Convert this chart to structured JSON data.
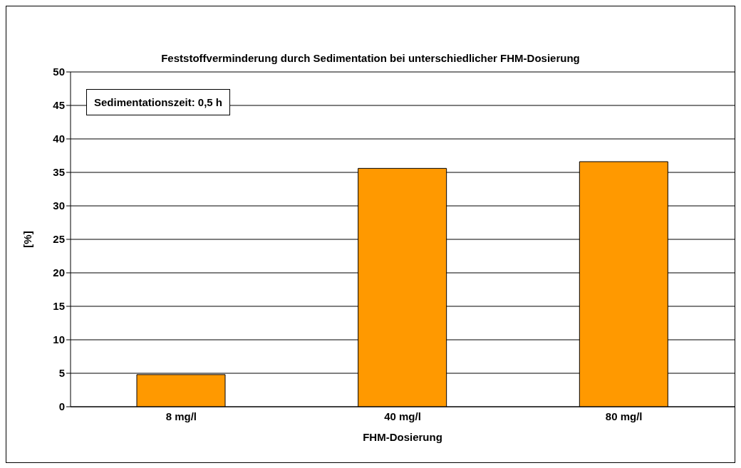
{
  "chart_data": {
    "type": "bar",
    "title": "Feststoffverminderung durch Sedimentation bei unterschiedlicher FHM-Dosierung",
    "xlabel": "FHM-Dosierung",
    "ylabel": "[%]",
    "annotations": [
      "Sedimentationszeit: 0,5 h"
    ],
    "categories": [
      "8 mg/l",
      "40 mg/l",
      "80 mg/l"
    ],
    "values": [
      4.8,
      35.6,
      36.6
    ],
    "color": "#ff9900",
    "ylim": [
      0,
      50
    ],
    "yticks": [
      0,
      5,
      10,
      15,
      20,
      25,
      30,
      35,
      40,
      45,
      50
    ],
    "grid": "y"
  }
}
